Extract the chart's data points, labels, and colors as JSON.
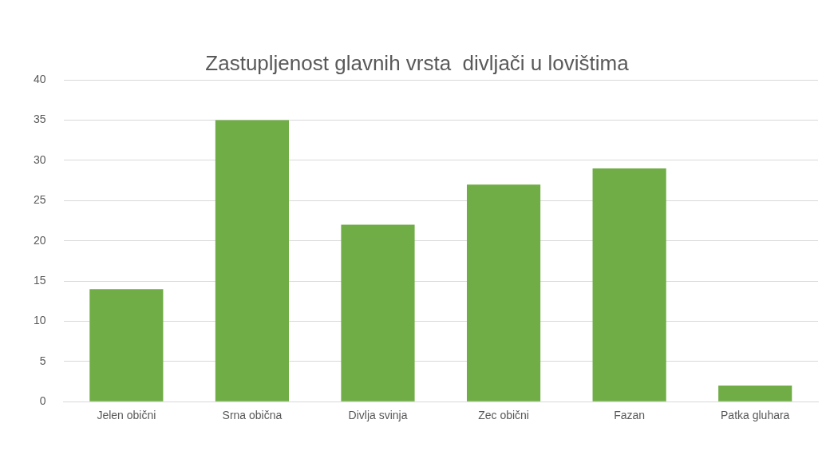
{
  "chart_data": {
    "type": "bar",
    "title": "Zastupljenost glavnih vrsta  divljači u lovištima",
    "categories": [
      "Jelen obični",
      "Srna obična",
      "Divlja svinja",
      "Zec obični",
      "Fazan",
      "Patka gluhara"
    ],
    "values": [
      14,
      35,
      22,
      27,
      29,
      2
    ],
    "color": "#70ad47",
    "ylim": [
      0,
      40
    ],
    "yticks": [
      0,
      5,
      10,
      15,
      20,
      25,
      30,
      35,
      40
    ],
    "grid": "y",
    "legend": false
  }
}
